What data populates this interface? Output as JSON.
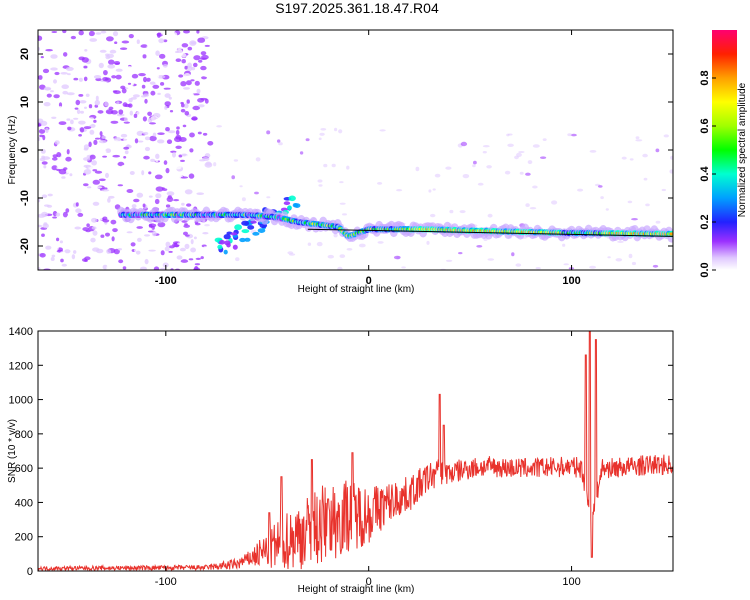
{
  "title": "S197.2025.361.18.47.R04",
  "chart_data": [
    {
      "type": "heatmap",
      "name": "spectrogram",
      "xlabel": "Height of straight line (km)",
      "ylabel": "Frequency (Hz)",
      "xlim": [
        -163,
        150
      ],
      "ylim": [
        -25,
        25
      ],
      "x_ticks": [
        -100,
        0,
        100
      ],
      "x_tick_labels": [
        "-100",
        "0",
        "100"
      ],
      "y_ticks": [
        20,
        10,
        0,
        -10,
        -20
      ],
      "y_tick_labels": [
        "20",
        "10",
        "0",
        "-10",
        "-20"
      ],
      "colorbar": {
        "label": "Normalized spectral amplitude",
        "range": [
          0,
          1
        ],
        "ticks": [
          0.0,
          0.2,
          0.4,
          0.6,
          0.8
        ],
        "tick_labels": [
          "0.0",
          "0.2",
          "0.4",
          "0.6",
          "0.8"
        ]
      },
      "ridge_line": {
        "x": [
          -120,
          -100,
          -80,
          -60,
          -45,
          -35,
          -25,
          -15,
          -10,
          0,
          20,
          30,
          50,
          70,
          90,
          100,
          110,
          130,
          150
        ],
        "y": [
          -13.5,
          -13.5,
          -13.5,
          -13.5,
          -14,
          -15,
          -15.5,
          -16,
          -18,
          -16.5,
          -16.5,
          -16.5,
          -16.8,
          -17,
          -17.2,
          -17.3,
          -17.3,
          -17.4,
          -17.5
        ]
      },
      "reference_line": {
        "x": [
          -30,
          150
        ],
        "y": [
          -16.5,
          -18
        ]
      },
      "scatter_x_range": [
        -163,
        -78
      ],
      "scatter_amplitude_range": [
        0,
        0.2
      ]
    },
    {
      "type": "line",
      "name": "snr",
      "xlabel": "Height of straight line (km)",
      "ylabel": "SNR (10 * v/v)",
      "xlim": [
        -163,
        150
      ],
      "ylim": [
        0,
        1400
      ],
      "x_ticks": [
        -100,
        0,
        100
      ],
      "x_tick_labels": [
        "-100",
        "0",
        "100"
      ],
      "y_ticks": [
        0,
        200,
        400,
        600,
        800,
        1000,
        1200,
        1400
      ],
      "y_tick_labels": [
        "0",
        "200",
        "400",
        "600",
        "800",
        "1000",
        "1200",
        "1400"
      ],
      "color": "#e8322c",
      "baseline": {
        "x": [
          -163,
          -80,
          -65,
          -50,
          -40,
          -30,
          -20,
          -10,
          0,
          10,
          20,
          30,
          35,
          40,
          50,
          60,
          70,
          80,
          90,
          100,
          105,
          110,
          115,
          120,
          130,
          140,
          150
        ],
        "y": [
          15,
          20,
          40,
          120,
          180,
          230,
          280,
          330,
          330,
          400,
          450,
          550,
          580,
          570,
          600,
          610,
          600,
          600,
          605,
          610,
          600,
          300,
          600,
          600,
          610,
          620,
          620
        ]
      },
      "noise_envelope": {
        "x": [
          -163,
          -80,
          -60,
          -45,
          -35,
          -20,
          -5,
          10,
          30,
          40,
          60,
          100,
          115,
          150
        ],
        "y": [
          12,
          15,
          40,
          150,
          200,
          250,
          200,
          120,
          90,
          70,
          60,
          60,
          60,
          60
        ]
      },
      "spikes": [
        {
          "x": -49,
          "y": 340
        },
        {
          "x": -43,
          "y": 550
        },
        {
          "x": -28,
          "y": 650
        },
        {
          "x": -20,
          "y": 420
        },
        {
          "x": -8,
          "y": 690
        },
        {
          "x": 35,
          "y": 1030
        },
        {
          "x": 37,
          "y": 850
        },
        {
          "x": 107,
          "y": 1260
        },
        {
          "x": 109,
          "y": 1400
        },
        {
          "x": 110,
          "y": 80
        },
        {
          "x": 112,
          "y": 1350
        }
      ]
    }
  ]
}
